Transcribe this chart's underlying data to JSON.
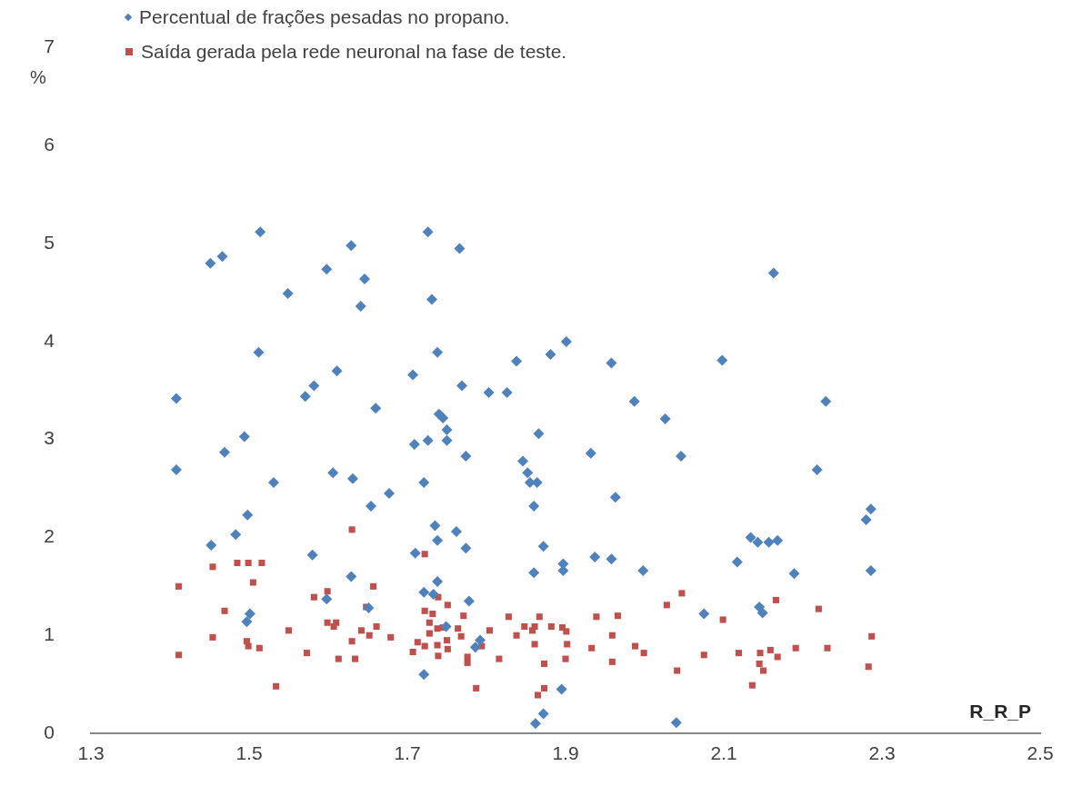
{
  "chart_data": {
    "type": "scatter",
    "ylabel": "%",
    "xlabel": "R_R_P",
    "xlim": [
      1.3,
      2.5
    ],
    "xticks": [
      1.3,
      1.5,
      1.7,
      1.9,
      2.1,
      2.3,
      2.5
    ],
    "ylim": [
      0,
      7
    ],
    "yticks": [
      0,
      1,
      2,
      3,
      4,
      5,
      6,
      7
    ],
    "grid": false,
    "legend": "top left",
    "series": [
      {
        "name": "Percentual de frações pesadas no propano.",
        "color": "#4f81bd",
        "marker": "diamond",
        "x": [
          1.514,
          1.629,
          1.466,
          1.451,
          1.598,
          1.646,
          1.549,
          1.641,
          1.512,
          1.611,
          1.707,
          1.582,
          1.571,
          1.408,
          1.66,
          1.494,
          1.469,
          1.408,
          1.606,
          1.631,
          1.531,
          1.677,
          1.654,
          1.726,
          1.766,
          1.731,
          1.738,
          1.838,
          1.881,
          1.901,
          1.958,
          1.769,
          1.803,
          1.826,
          1.74,
          1.745,
          1.75,
          1.75,
          1.726,
          1.709,
          1.866,
          1.987,
          2.026,
          1.774,
          1.846,
          1.932,
          2.046,
          1.721,
          1.852,
          1.855,
          1.864,
          1.963,
          1.86,
          1.735,
          1.762,
          1.738,
          1.774,
          1.71,
          1.872,
          1.86,
          1.897,
          1.897,
          1.937,
          1.958,
          1.998,
          1.738,
          1.721,
          1.733,
          1.778,
          2.075,
          1.749,
          1.792,
          1.786,
          1.721,
          1.895,
          1.872,
          1.862,
          2.04,
          2.163,
          2.098,
          2.229,
          2.218,
          2.286,
          2.28,
          2.134,
          2.143,
          2.157,
          2.168,
          2.117,
          2.189,
          2.286,
          2.145,
          2.149,
          1.498,
          1.483,
          1.452,
          1.58,
          1.629,
          1.501,
          1.497,
          1.598,
          1.651
        ],
        "values": [
          5.12,
          4.98,
          4.87,
          4.8,
          4.74,
          4.64,
          4.49,
          4.36,
          3.89,
          3.7,
          3.66,
          3.55,
          3.44,
          3.42,
          3.32,
          3.03,
          2.87,
          2.69,
          2.66,
          2.6,
          2.56,
          2.45,
          2.32,
          5.12,
          4.95,
          4.43,
          3.89,
          3.8,
          3.87,
          4.0,
          3.78,
          3.55,
          3.48,
          3.48,
          3.26,
          3.22,
          3.1,
          2.99,
          2.99,
          2.95,
          3.06,
          3.39,
          3.21,
          2.83,
          2.78,
          2.86,
          2.83,
          2.56,
          2.66,
          2.56,
          2.56,
          2.41,
          2.32,
          2.12,
          2.06,
          1.97,
          1.89,
          1.84,
          1.91,
          1.64,
          1.73,
          1.66,
          1.8,
          1.78,
          1.66,
          1.55,
          1.44,
          1.42,
          1.35,
          1.22,
          1.09,
          0.95,
          0.88,
          0.6,
          0.45,
          0.2,
          0.1,
          0.11,
          4.7,
          3.81,
          3.39,
          2.69,
          2.29,
          2.18,
          2.0,
          1.95,
          1.95,
          1.97,
          1.75,
          1.63,
          1.66,
          1.29,
          1.23,
          2.23,
          2.03,
          1.92,
          1.82,
          1.6,
          1.22,
          1.14,
          1.37,
          1.28
        ]
      },
      {
        "name": "Saída gerada pela rede neuronal na fase de teste.",
        "color": "#c0504d",
        "marker": "square",
        "x": [
          1.63,
          1.454,
          1.485,
          1.499,
          1.516,
          1.411,
          1.505,
          1.657,
          1.599,
          1.582,
          1.469,
          1.648,
          1.599,
          1.61,
          1.607,
          1.661,
          1.55,
          1.642,
          1.652,
          1.679,
          1.454,
          1.497,
          1.499,
          1.513,
          1.63,
          1.573,
          1.411,
          1.613,
          1.634,
          1.534,
          1.722,
          1.739,
          1.751,
          2.047,
          2.028,
          1.722,
          1.732,
          1.771,
          1.728,
          1.828,
          1.867,
          1.939,
          1.966,
          1.738,
          1.745,
          1.764,
          1.848,
          1.861,
          1.882,
          1.896,
          1.901,
          1.804,
          1.728,
          1.768,
          1.75,
          1.838,
          1.858,
          1.959,
          1.713,
          1.722,
          1.738,
          1.751,
          1.707,
          1.739,
          1.861,
          1.902,
          1.933,
          1.794,
          1.988,
          1.999,
          1.776,
          1.776,
          1.816,
          1.9,
          1.873,
          1.959,
          2.041,
          2.075,
          1.787,
          1.873,
          1.865,
          2.166,
          2.22,
          2.099,
          2.287,
          2.119,
          2.146,
          2.159,
          2.168,
          2.191,
          2.231,
          2.145,
          2.15,
          2.283,
          2.136
        ],
        "values": [
          2.08,
          1.7,
          1.74,
          1.74,
          1.74,
          1.5,
          1.54,
          1.5,
          1.45,
          1.39,
          1.25,
          1.29,
          1.13,
          1.13,
          1.09,
          1.09,
          1.05,
          1.05,
          1.0,
          0.98,
          0.98,
          0.94,
          0.89,
          0.87,
          0.94,
          0.82,
          0.8,
          0.76,
          0.76,
          0.48,
          1.83,
          1.39,
          1.31,
          1.43,
          1.31,
          1.25,
          1.22,
          1.2,
          1.13,
          1.19,
          1.19,
          1.19,
          1.2,
          1.07,
          1.08,
          1.07,
          1.09,
          1.09,
          1.09,
          1.08,
          1.04,
          1.05,
          1.02,
          0.99,
          0.95,
          1.0,
          1.05,
          1.0,
          0.93,
          0.89,
          0.9,
          0.86,
          0.83,
          0.79,
          0.91,
          0.91,
          0.87,
          0.89,
          0.89,
          0.82,
          0.78,
          0.72,
          0.76,
          0.76,
          0.71,
          0.73,
          0.64,
          0.8,
          0.46,
          0.46,
          0.39,
          1.36,
          1.27,
          1.16,
          0.99,
          0.82,
          0.82,
          0.85,
          0.78,
          0.87,
          0.87,
          0.71,
          0.64,
          0.68,
          0.49
        ]
      }
    ]
  }
}
